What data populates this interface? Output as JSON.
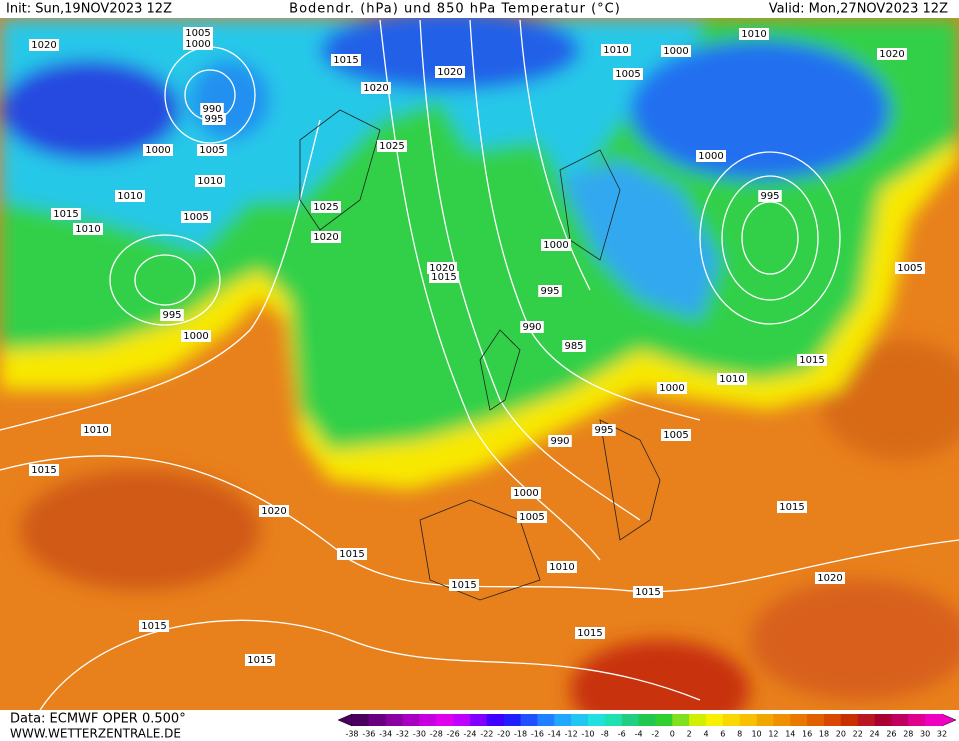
{
  "header": {
    "init": "Init: Sun,19NOV2023 12Z",
    "title": "Bodendr. (hPa) und 850 hPa Temperatur (°C)",
    "valid": "Valid: Mon,27NOV2023 12Z"
  },
  "footer": {
    "data": "Data: ECMWF OPER 0.500°",
    "site": "WWW.WETTERZENTRALE.DE"
  },
  "legend": {
    "ticks": [
      -38,
      -36,
      -34,
      -32,
      -30,
      -28,
      -26,
      -24,
      -22,
      -20,
      -18,
      -16,
      -14,
      -12,
      -10,
      -8,
      -6,
      -4,
      -2,
      0,
      2,
      4,
      6,
      8,
      10,
      12,
      14,
      16,
      18,
      20,
      22,
      24,
      26,
      28,
      30,
      32
    ],
    "colors": [
      "#4b0060",
      "#6a0080",
      "#8a00a0",
      "#a800c0",
      "#c800e0",
      "#e000f0",
      "#c000ff",
      "#8000ff",
      "#4000ff",
      "#2020ff",
      "#2050ff",
      "#2080ff",
      "#20a8ff",
      "#20c8f0",
      "#20e0e0",
      "#20e0b0",
      "#20d080",
      "#20c850",
      "#30d030",
      "#80e020",
      "#d0f000",
      "#f8f000",
      "#f8d800",
      "#f8c000",
      "#f0a800",
      "#f09000",
      "#e87800",
      "#e06000",
      "#d84800",
      "#c83000",
      "#b81820",
      "#a80030",
      "#c00060",
      "#e00090",
      "#f000c0"
    ]
  },
  "isobar_labels": [
    "1020",
    "1005",
    "1000",
    "1015",
    "1020",
    "1020",
    "1010",
    "1000",
    "1005",
    "1010",
    "1020",
    "990",
    "995",
    "1000",
    "1005",
    "1025",
    "1010",
    "1010",
    "1000",
    "995",
    "1015",
    "1005",
    "1025",
    "1010",
    "1020",
    "1000",
    "1020",
    "1015",
    "1005",
    "995",
    "995",
    "990",
    "1000",
    "985",
    "1015",
    "1010",
    "1000",
    "1010",
    "995",
    "1005",
    "990",
    "1015",
    "1000",
    "1015",
    "1020",
    "1005",
    "1015",
    "1010",
    "1020",
    "1015",
    "1015",
    "1015",
    "1015",
    "1015"
  ]
}
